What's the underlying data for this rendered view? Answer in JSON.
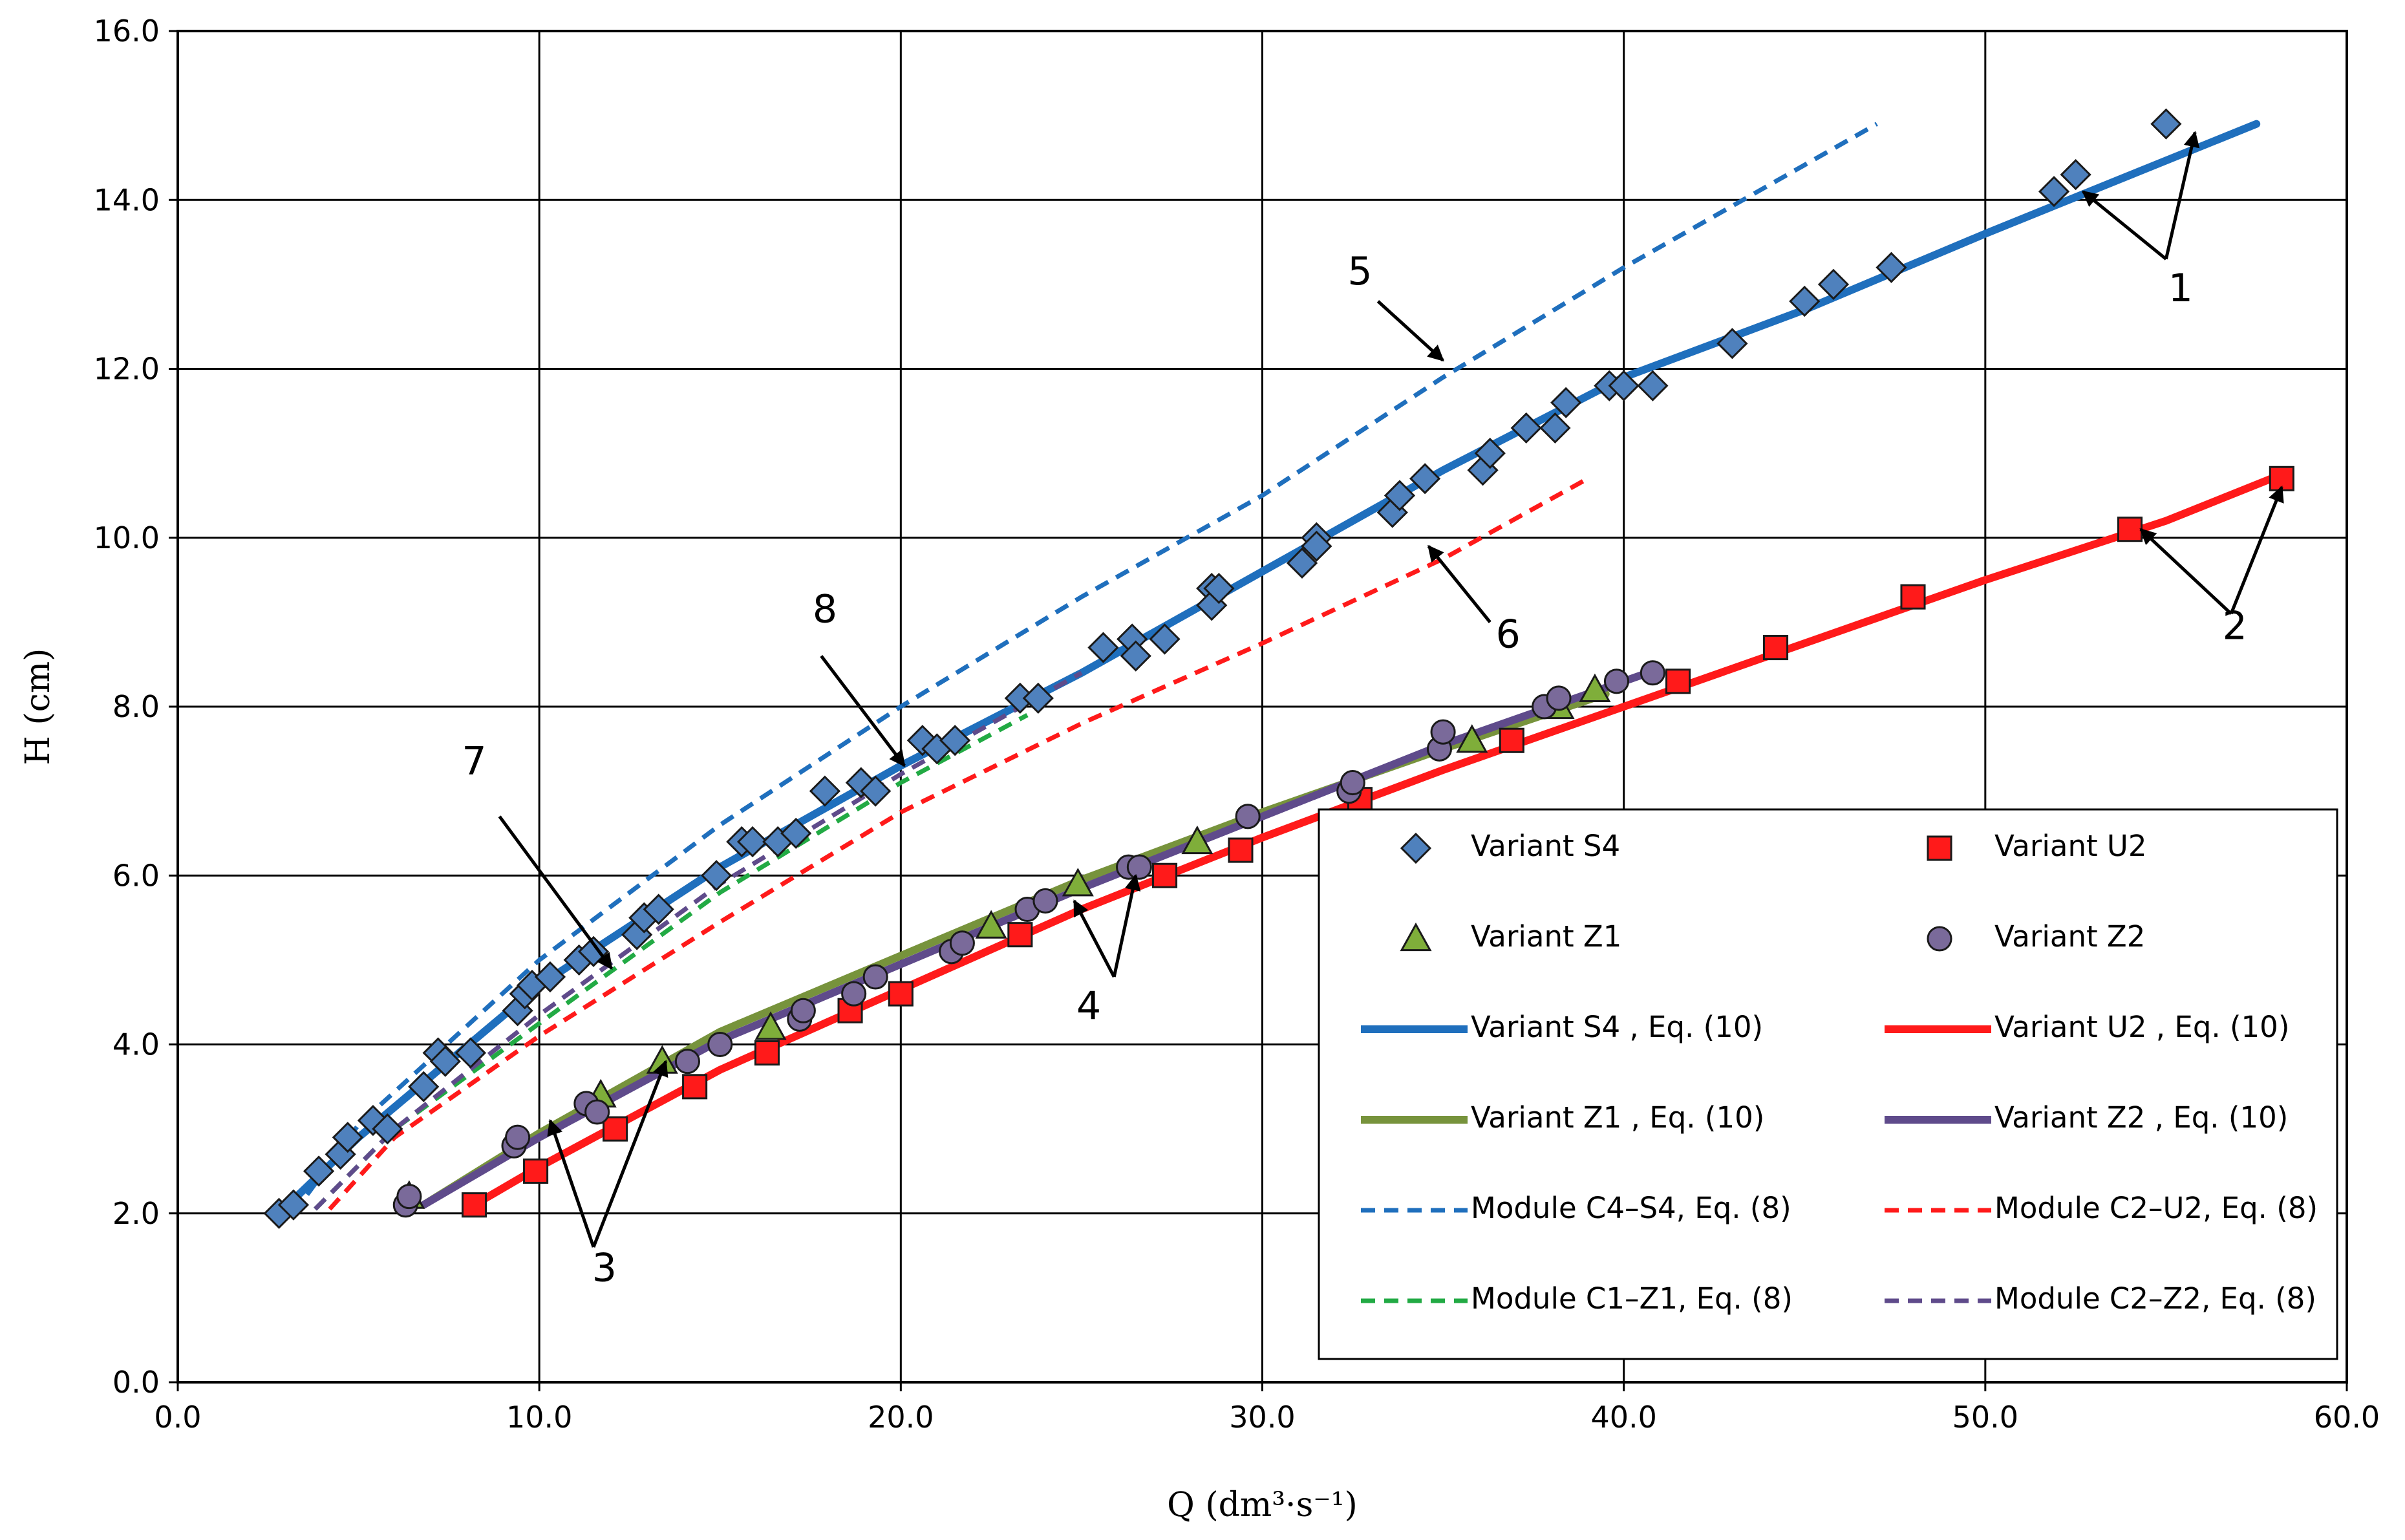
{
  "chart_data": {
    "type": "scatter",
    "xlabel": "Q (dm³·s⁻¹)",
    "ylabel": "H (cm)",
    "xlim": [
      0,
      60
    ],
    "ylim": [
      0,
      16
    ],
    "xticks": [
      "0.0",
      "10.0",
      "20.0",
      "30.0",
      "40.0",
      "50.0",
      "60.0"
    ],
    "yticks": [
      "0.0",
      "2.0",
      "4.0",
      "6.0",
      "8.0",
      "10.0",
      "12.0",
      "14.0",
      "16.0"
    ],
    "grid": true,
    "legend_position": "bottom-right",
    "colors": {
      "S4": "#1f6fbd",
      "S4_marker": "#4f81bd",
      "U2": "#ff1a1a",
      "Z1": "#77933c",
      "Z1_marker": "#7fae3a",
      "Z2": "#5f4b8b",
      "Z2_marker": "#7a6a9a",
      "C1Z1": "#22aa44",
      "C2Z2": "#5f4b8b"
    },
    "scatter_series": [
      {
        "key": "S4",
        "name": "Variant S4",
        "marker": "diamond",
        "points": [
          [
            2.8,
            2.0
          ],
          [
            3.2,
            2.1
          ],
          [
            3.9,
            2.5
          ],
          [
            4.5,
            2.7
          ],
          [
            4.7,
            2.9
          ],
          [
            5.4,
            3.1
          ],
          [
            5.8,
            3.0
          ],
          [
            6.8,
            3.5
          ],
          [
            7.2,
            3.9
          ],
          [
            7.4,
            3.8
          ],
          [
            8.1,
            3.9
          ],
          [
            9.4,
            4.4
          ],
          [
            9.6,
            4.6
          ],
          [
            9.8,
            4.7
          ],
          [
            10.3,
            4.8
          ],
          [
            11.1,
            5.0
          ],
          [
            11.5,
            5.1
          ],
          [
            12.7,
            5.3
          ],
          [
            12.9,
            5.5
          ],
          [
            13.3,
            5.6
          ],
          [
            14.9,
            6.0
          ],
          [
            15.6,
            6.4
          ],
          [
            15.9,
            6.4
          ],
          [
            16.6,
            6.4
          ],
          [
            17.1,
            6.5
          ],
          [
            17.9,
            7.0
          ],
          [
            18.9,
            7.1
          ],
          [
            19.3,
            7.0
          ],
          [
            20.6,
            7.6
          ],
          [
            21.0,
            7.5
          ],
          [
            21.5,
            7.6
          ],
          [
            23.3,
            8.1
          ],
          [
            23.8,
            8.1
          ],
          [
            25.6,
            8.7
          ],
          [
            26.4,
            8.8
          ],
          [
            26.5,
            8.6
          ],
          [
            27.3,
            8.8
          ],
          [
            28.6,
            9.4
          ],
          [
            28.6,
            9.2
          ],
          [
            28.8,
            9.4
          ],
          [
            31.1,
            9.7
          ],
          [
            31.5,
            10.0
          ],
          [
            31.5,
            9.9
          ],
          [
            33.6,
            10.3
          ],
          [
            33.8,
            10.5
          ],
          [
            34.5,
            10.7
          ],
          [
            36.1,
            10.8
          ],
          [
            36.3,
            11.0
          ],
          [
            37.3,
            11.3
          ],
          [
            38.1,
            11.3
          ],
          [
            38.4,
            11.6
          ],
          [
            39.6,
            11.8
          ],
          [
            40.0,
            11.8
          ],
          [
            40.8,
            11.8
          ],
          [
            43.0,
            12.3
          ],
          [
            45.0,
            12.8
          ],
          [
            45.8,
            13.0
          ],
          [
            47.4,
            13.2
          ],
          [
            51.9,
            14.1
          ],
          [
            52.5,
            14.3
          ],
          [
            55.0,
            14.9
          ]
        ]
      },
      {
        "key": "U2",
        "name": "Variant U2",
        "marker": "square",
        "points": [
          [
            8.2,
            2.1
          ],
          [
            9.9,
            2.5
          ],
          [
            12.1,
            3.0
          ],
          [
            14.3,
            3.5
          ],
          [
            16.3,
            3.9
          ],
          [
            18.6,
            4.4
          ],
          [
            20.0,
            4.6
          ],
          [
            23.3,
            5.3
          ],
          [
            27.3,
            6.0
          ],
          [
            29.4,
            6.3
          ],
          [
            32.7,
            6.9
          ],
          [
            36.9,
            7.6
          ],
          [
            41.5,
            8.3
          ],
          [
            44.2,
            8.7
          ],
          [
            48.0,
            9.3
          ],
          [
            54.0,
            10.1
          ],
          [
            58.2,
            10.7
          ]
        ]
      },
      {
        "key": "Z1",
        "name": "Variant Z1",
        "marker": "triangle",
        "points": [
          [
            6.4,
            2.2
          ],
          [
            11.7,
            3.4
          ],
          [
            13.4,
            3.8
          ],
          [
            16.4,
            4.2
          ],
          [
            22.5,
            5.4
          ],
          [
            24.9,
            5.9
          ],
          [
            28.2,
            6.4
          ],
          [
            35.8,
            7.6
          ],
          [
            38.2,
            8.0
          ],
          [
            39.2,
            8.2
          ]
        ]
      },
      {
        "key": "Z2",
        "name": "Variant Z2",
        "marker": "circle",
        "points": [
          [
            6.3,
            2.1
          ],
          [
            6.4,
            2.2
          ],
          [
            9.3,
            2.8
          ],
          [
            9.4,
            2.9
          ],
          [
            11.3,
            3.3
          ],
          [
            11.6,
            3.2
          ],
          [
            14.1,
            3.8
          ],
          [
            15.0,
            4.0
          ],
          [
            17.2,
            4.3
          ],
          [
            17.3,
            4.4
          ],
          [
            18.7,
            4.6
          ],
          [
            19.3,
            4.8
          ],
          [
            21.4,
            5.1
          ],
          [
            21.7,
            5.2
          ],
          [
            23.5,
            5.6
          ],
          [
            24.0,
            5.7
          ],
          [
            26.3,
            6.1
          ],
          [
            26.6,
            6.1
          ],
          [
            29.6,
            6.7
          ],
          [
            32.4,
            7.0
          ],
          [
            32.5,
            7.1
          ],
          [
            34.9,
            7.5
          ],
          [
            35.0,
            7.7
          ],
          [
            37.8,
            8.0
          ],
          [
            38.2,
            8.1
          ],
          [
            39.8,
            8.3
          ],
          [
            40.8,
            8.4
          ]
        ]
      }
    ],
    "line_series": [
      {
        "key": "S4eq",
        "name": "Variant S4 , Eq. (10)",
        "style": "solid",
        "colorKey": "S4",
        "width": 12,
        "points": [
          [
            2.8,
            2.0
          ],
          [
            5,
            2.9
          ],
          [
            10,
            4.7
          ],
          [
            15,
            6.1
          ],
          [
            20,
            7.3
          ],
          [
            25,
            8.4
          ],
          [
            30,
            9.6
          ],
          [
            35,
            10.8
          ],
          [
            40,
            11.9
          ],
          [
            45,
            12.7
          ],
          [
            50,
            13.6
          ],
          [
            57.5,
            14.9
          ]
        ]
      },
      {
        "key": "U2eq",
        "name": "Variant U2 , Eq. (10)",
        "style": "solid",
        "colorKey": "U2",
        "width": 12,
        "points": [
          [
            8.2,
            2.1
          ],
          [
            10,
            2.55
          ],
          [
            15,
            3.7
          ],
          [
            20,
            4.65
          ],
          [
            25,
            5.6
          ],
          [
            30,
            6.45
          ],
          [
            35,
            7.25
          ],
          [
            40,
            8.0
          ],
          [
            45,
            8.75
          ],
          [
            50,
            9.5
          ],
          [
            55,
            10.2
          ],
          [
            58.2,
            10.75
          ]
        ]
      },
      {
        "key": "Z1eq",
        "name": "Variant Z1 , Eq. (10)",
        "style": "solid",
        "colorKey": "Z1",
        "width": 12,
        "points": [
          [
            6.8,
            2.1
          ],
          [
            10,
            2.95
          ],
          [
            15,
            4.15
          ],
          [
            20,
            5.05
          ],
          [
            25,
            5.95
          ],
          [
            30,
            6.75
          ],
          [
            35,
            7.5
          ],
          [
            39.5,
            8.15
          ]
        ]
      },
      {
        "key": "Z2eq",
        "name": "Variant Z2 , Eq. (10)",
        "style": "solid",
        "colorKey": "Z2",
        "width": 12,
        "points": [
          [
            6.8,
            2.1
          ],
          [
            10,
            2.9
          ],
          [
            15,
            4.05
          ],
          [
            20,
            4.95
          ],
          [
            25,
            5.85
          ],
          [
            30,
            6.7
          ],
          [
            35,
            7.55
          ],
          [
            41,
            8.45
          ]
        ]
      },
      {
        "key": "C4S4",
        "name": "Module C4–S4, Eq. (8)",
        "style": "dashed",
        "colorKey": "S4",
        "width": 7,
        "points": [
          [
            3.2,
            2.0
          ],
          [
            5,
            3.05
          ],
          [
            10,
            5.0
          ],
          [
            15,
            6.6
          ],
          [
            20,
            8.0
          ],
          [
            25,
            9.3
          ],
          [
            30,
            10.5
          ],
          [
            35,
            11.9
          ],
          [
            40,
            13.2
          ],
          [
            47,
            14.9
          ]
        ]
      },
      {
        "key": "C2U2",
        "name": "Module C2–U2, Eq. (8)",
        "style": "dashed",
        "colorKey": "U2",
        "width": 7,
        "points": [
          [
            4.2,
            2.05
          ],
          [
            6,
            2.9
          ],
          [
            10,
            4.1
          ],
          [
            15,
            5.45
          ],
          [
            20,
            6.75
          ],
          [
            25,
            7.8
          ],
          [
            30,
            8.75
          ],
          [
            35,
            9.75
          ],
          [
            39,
            10.7
          ]
        ]
      },
      {
        "key": "C1Z1",
        "name": "Module C1–Z1, Eq. (8)",
        "style": "dashed",
        "colorKey": "C1Z1",
        "width": 7,
        "points": [
          [
            3.8,
            2.05
          ],
          [
            6,
            3.0
          ],
          [
            10,
            4.25
          ],
          [
            15,
            5.8
          ],
          [
            20,
            7.1
          ],
          [
            23.5,
            7.9
          ]
        ]
      },
      {
        "key": "C2Z2",
        "name": "Module C2–Z2, Eq. (8)",
        "style": "dashed",
        "colorKey": "C2Z2",
        "width": 7,
        "points": [
          [
            3.8,
            2.05
          ],
          [
            6,
            3.0
          ],
          [
            10,
            4.35
          ],
          [
            15,
            5.9
          ],
          [
            20,
            7.2
          ],
          [
            25,
            8.4
          ]
        ]
      }
    ],
    "annotations": [
      {
        "label": "1",
        "text_at": [
          55.4,
          12.8
        ],
        "arrows": [
          [
            [
              55.0,
              13.3
            ],
            [
              52.7,
              14.1
            ]
          ],
          [
            [
              55.0,
              13.3
            ],
            [
              55.8,
              14.8
            ]
          ]
        ]
      },
      {
        "label": "2",
        "text_at": [
          56.9,
          8.8
        ],
        "arrows": [
          [
            [
              56.8,
              9.1
            ],
            [
              54.3,
              10.1
            ]
          ],
          [
            [
              56.8,
              9.1
            ],
            [
              58.2,
              10.6
            ]
          ]
        ]
      },
      {
        "label": "3",
        "text_at": [
          11.8,
          1.2
        ],
        "arrows": [
          [
            [
              11.5,
              1.6
            ],
            [
              10.3,
              3.1
            ]
          ],
          [
            [
              11.5,
              1.6
            ],
            [
              13.5,
              3.8
            ]
          ]
        ]
      },
      {
        "label": "4",
        "text_at": [
          25.2,
          4.3
        ],
        "arrows": [
          [
            [
              25.9,
              4.8
            ],
            [
              24.8,
              5.7
            ]
          ],
          [
            [
              25.9,
              4.8
            ],
            [
              26.5,
              6.0
            ]
          ]
        ]
      },
      {
        "label": "5",
        "text_at": [
          32.7,
          13.0
        ],
        "arrows": [
          [
            [
              33.2,
              12.8
            ],
            [
              35.0,
              12.1
            ]
          ]
        ]
      },
      {
        "label": "6",
        "text_at": [
          36.8,
          8.7
        ],
        "arrows": [
          [
            [
              36.3,
              9.0
            ],
            [
              34.6,
              9.9
            ]
          ]
        ]
      },
      {
        "label": "7",
        "text_at": [
          8.2,
          7.2
        ],
        "arrows": [
          [
            [
              8.9,
              6.7
            ],
            [
              12.0,
              4.9
            ]
          ]
        ]
      },
      {
        "label": "8",
        "text_at": [
          17.9,
          9.0
        ],
        "arrows": [
          [
            [
              17.8,
              8.6
            ],
            [
              20.1,
              7.3
            ]
          ]
        ]
      }
    ]
  }
}
